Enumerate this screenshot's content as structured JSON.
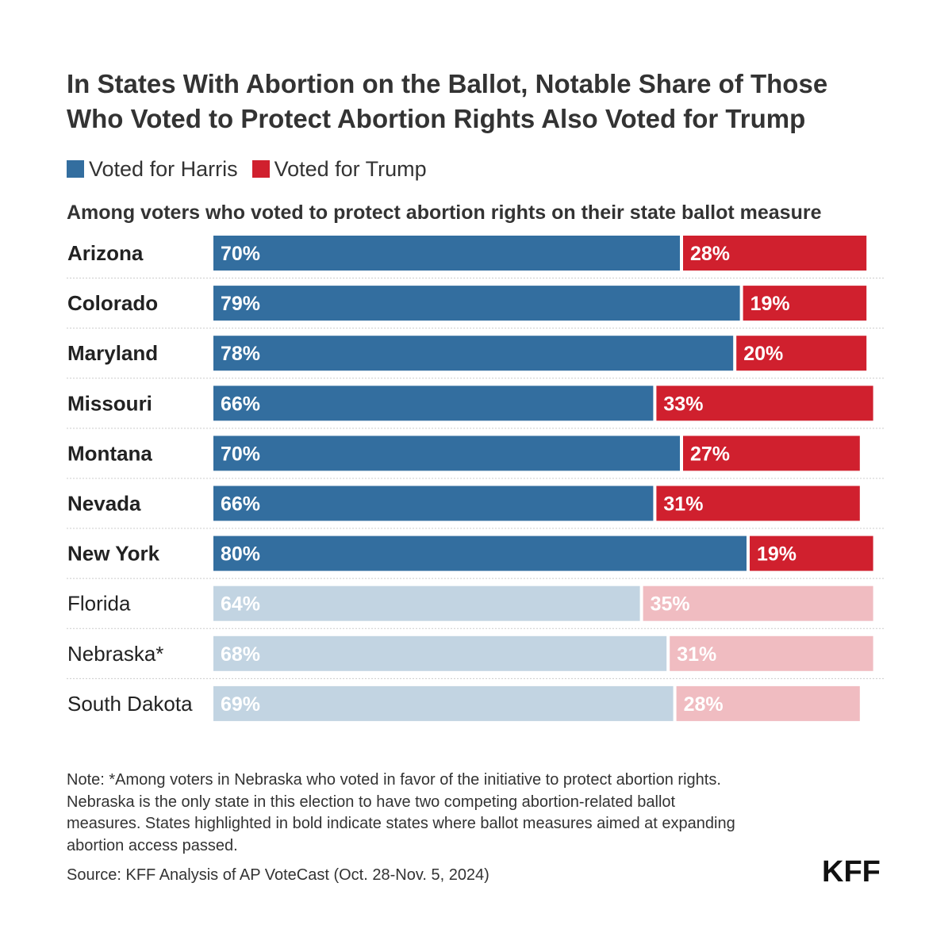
{
  "chart_data": {
    "type": "bar",
    "stacked": true,
    "orientation": "horizontal",
    "title_lines": [
      "In States With Abortion on the Ballot, Notable Share of Those",
      "Who Voted to Protect Abortion Rights Also Voted for Trump"
    ],
    "subtitle": "Among voters who voted to protect abortion rights on their state ballot measure",
    "legend_position": "top-left",
    "categories": [
      "Arizona",
      "Colorado",
      "Maryland",
      "Missouri",
      "Montana",
      "Nevada",
      "New York",
      "Florida",
      "Nebraska*",
      "South Dakota"
    ],
    "highlighted": [
      true,
      true,
      true,
      true,
      true,
      true,
      true,
      false,
      false,
      false
    ],
    "series": [
      {
        "name": "Voted for Harris",
        "color": "#336e9f",
        "faded_color": "#c2d4e2",
        "values": [
          70,
          79,
          78,
          66,
          70,
          66,
          80,
          64,
          68,
          69
        ],
        "labels": [
          "70%",
          "79%",
          "78%",
          "66%",
          "70%",
          "66%",
          "80%",
          "64%",
          "68%",
          "69%"
        ]
      },
      {
        "name": "Voted for Trump",
        "color": "#d0202e",
        "faded_color": "#f0bcc1",
        "values": [
          28,
          19,
          20,
          33,
          27,
          31,
          19,
          35,
          31,
          28
        ],
        "labels": [
          "28%",
          "19%",
          "20%",
          "33%",
          "27%",
          "31%",
          "19%",
          "35%",
          "31%",
          "28%"
        ]
      }
    ],
    "xlim": [
      0,
      100
    ],
    "grid": false
  },
  "footer": {
    "note_lines": [
      "Note: *Among voters in Nebraska who voted in favor of the initiative to protect abortion rights.",
      "Nebraska is the only state in this election to have two competing abortion-related ballot",
      "measures. States highlighted in bold indicate states where ballot measures aimed at expanding",
      "abortion access passed."
    ],
    "source": "Source: KFF Analysis of AP VoteCast (Oct. 28-Nov. 5, 2024)",
    "logo_text": "KFF"
  }
}
